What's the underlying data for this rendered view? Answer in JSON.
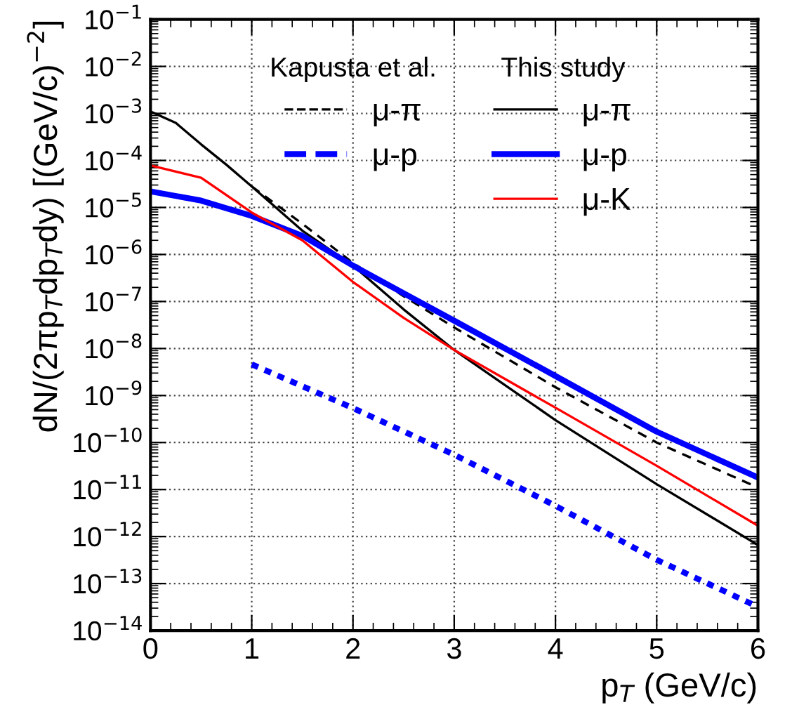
{
  "chart_data": {
    "type": "line",
    "xlabel": "p$_{T}$ (GeV/c)",
    "ylabel": "dN/(2πp$_{T}$dp$_{T}$dy) [(GeV/c)$^{−2}$]",
    "annotations": [
      "Kapusta et al.",
      "This study"
    ],
    "log": "y",
    "grid": true,
    "legend": "top",
    "xlim": [
      0,
      6
    ],
    "xticks": [
      0,
      1,
      2,
      3,
      4,
      5,
      6
    ],
    "ylim": [
      1e-14,
      0.1
    ],
    "yticks": [
      {
        "value": 1e-14,
        "label": "10$^{−14}$"
      },
      {
        "value": 1e-13,
        "label": "10$^{−13}$"
      },
      {
        "value": 1e-12,
        "label": "10$^{−12}$"
      },
      {
        "value": 1e-11,
        "label": "10$^{−11}$"
      },
      {
        "value": 1e-10,
        "label": "10$^{−10}$"
      },
      {
        "value": 1e-09,
        "label": "10$^{−9}$"
      },
      {
        "value": 1e-08,
        "label": "10$^{−8}$"
      },
      {
        "value": 1e-07,
        "label": "10$^{−7}$"
      },
      {
        "value": 1e-06,
        "label": "10$^{−6}$"
      },
      {
        "value": 1e-05,
        "label": "10$^{−5}$"
      },
      {
        "value": 0.0001,
        "label": "10$^{−4}$"
      },
      {
        "value": 0.001,
        "label": "10$^{−3}$"
      },
      {
        "value": 0.01,
        "label": "10$^{−2}$"
      },
      {
        "value": 0.1,
        "label": "10$^{−1}$"
      }
    ],
    "series": [
      {
        "name": "μ-π",
        "color": "#000000",
        "line_style": "dashed",
        "x": [
          1,
          1.5,
          2,
          2.5,
          3,
          4,
          5,
          6
        ],
        "values": [
          2.8e-05,
          4.5e-06,
          6.6e-07,
          1.3e-07,
          2.8e-08,
          1.5e-09,
          1e-10,
          1.1e-11
        ]
      },
      {
        "name": "μ-p",
        "color": "#0000ff",
        "line_style": "dotted",
        "x": [
          1,
          2,
          3,
          4,
          5,
          6
        ],
        "values": [
          4.6e-09,
          5.4e-10,
          5.5e-11,
          4.5e-12,
          3.2e-13,
          3.2e-14
        ]
      },
      {
        "name": "μ-π",
        "color": "#000000",
        "line_style": "solid",
        "x": [
          0,
          0.25,
          0.5,
          0.75,
          1,
          1.5,
          2,
          2.5,
          3,
          4,
          5,
          6
        ],
        "values": [
          0.0011,
          0.00063,
          0.00022,
          8.1e-05,
          2.8e-05,
          3.2e-06,
          5.8e-07,
          6.8e-08,
          9.3e-09,
          3e-10,
          1.3e-11,
          6.6e-13
        ]
      },
      {
        "name": "μ-p",
        "color": "#0000ff",
        "line_style": "solid",
        "x": [
          0,
          0.5,
          1,
          1.5,
          2,
          2.5,
          3,
          4,
          5,
          6
        ],
        "values": [
          2.2e-05,
          1.4e-05,
          6.6e-06,
          2.5e-06,
          5.8e-07,
          1.5e-07,
          3.9e-08,
          2.6e-09,
          1.7e-10,
          1.8e-11
        ]
      },
      {
        "name": "μ-K",
        "color": "#ff0000",
        "line_style": "solid",
        "x": [
          0,
          0.5,
          1,
          1.5,
          2,
          2.5,
          3,
          4,
          5,
          6
        ],
        "values": [
          7.8e-05,
          4.3e-05,
          7.8e-06,
          2e-06,
          2.6e-07,
          4.5e-08,
          9.3e-09,
          5.5e-10,
          3.2e-11,
          1.7e-12
        ]
      }
    ]
  }
}
